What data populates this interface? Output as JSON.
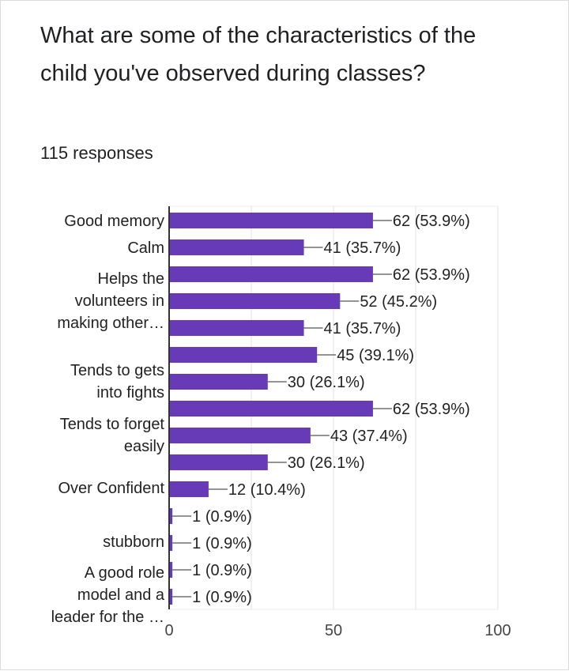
{
  "question": {
    "title": "What are some of the characteristics of the child you've observed during classes?",
    "responses": "115 responses"
  },
  "colors": {
    "bar": "#673ab7",
    "grid": "#e0e0e0",
    "axis": "#333333",
    "text": "#202124"
  },
  "chart_data": {
    "type": "bar",
    "orientation": "horizontal",
    "categories": [
      "Good memory",
      "Calm",
      "Helps the volunteers in making other…",
      "",
      "",
      "",
      "Tends to gets into fights",
      "",
      "Tends to forget easily",
      "",
      "Over Confident",
      "",
      "stubborn",
      "",
      "A good role model and a leader for the …"
    ],
    "values": [
      62,
      41,
      62,
      52,
      41,
      45,
      30,
      62,
      43,
      30,
      12,
      1,
      1,
      1,
      1
    ],
    "data_labels": [
      "62 (53.9%)",
      "41 (35.7%)",
      "62 (53.9%)",
      "52 (45.2%)",
      "41 (35.7%)",
      "45 (39.1%)",
      "30 (26.1%)",
      "62 (53.9%)",
      "43 (37.4%)",
      "30 (26.1%)",
      "12 (10.4%)",
      "1 (0.9%)",
      "1 (0.9%)",
      "1 (0.9%)",
      "1 (0.9%)"
    ],
    "xlim": [
      0,
      100
    ],
    "xticks": [
      "0",
      "50",
      "100"
    ],
    "grid": true,
    "legend": "none"
  }
}
